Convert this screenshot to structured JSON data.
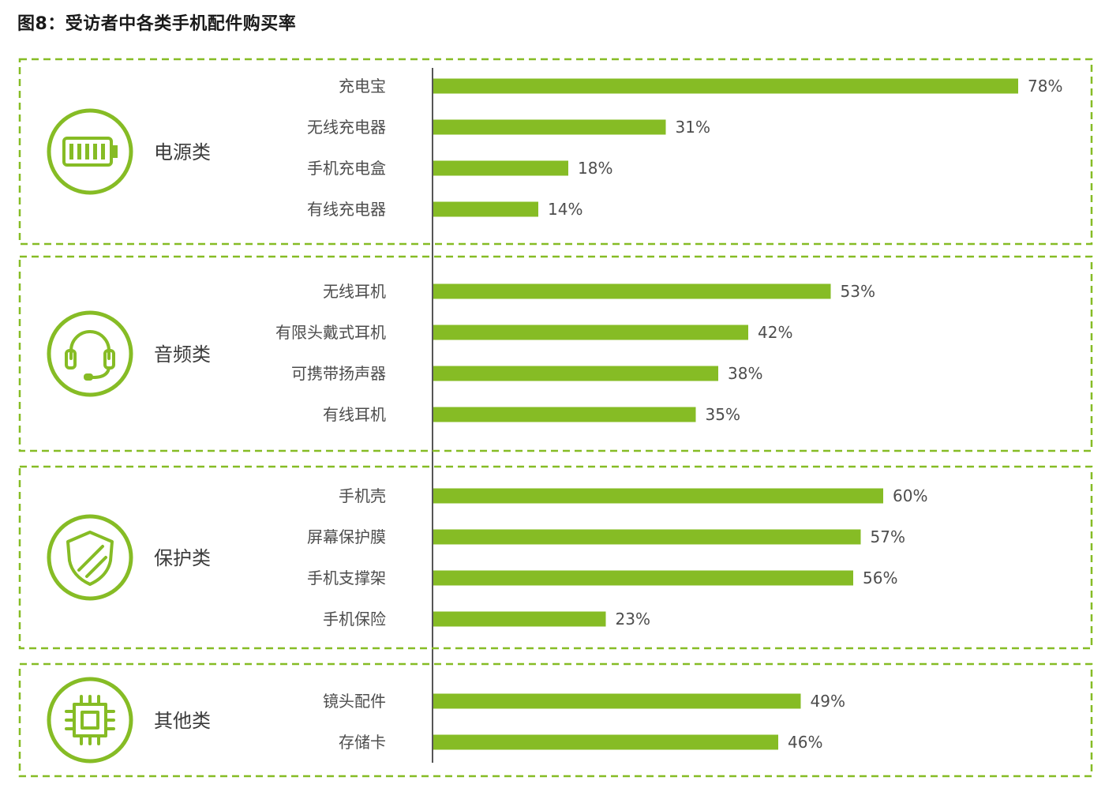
{
  "title": "图8：受访者中各类手机配件购买率",
  "colors": {
    "accent": "#86bc25",
    "text": "#4d4d4d"
  },
  "chart_data": {
    "type": "bar",
    "orientation": "horizontal",
    "title": "图8：受访者中各类手机配件购买率",
    "unit": "%",
    "xlim": [
      0,
      80
    ],
    "grid": false,
    "groups": [
      {
        "name": "电源类",
        "icon": "battery-icon",
        "categories": [
          "充电宝",
          "无线充电器",
          "手机充电盒",
          "有线充电器"
        ],
        "values": [
          78,
          31,
          18,
          14
        ],
        "labels": [
          "78%",
          "31%",
          "18%",
          "14%"
        ]
      },
      {
        "name": "音频类",
        "icon": "headset-icon",
        "categories": [
          "无线耳机",
          "有限头戴式耳机",
          "可携带扬声器",
          "有线耳机"
        ],
        "values": [
          53,
          42,
          38,
          35
        ],
        "labels": [
          "53%",
          "42%",
          "38%",
          "35%"
        ]
      },
      {
        "name": "保护类",
        "icon": "shield-icon",
        "categories": [
          "手机壳",
          "屏幕保护膜",
          "手机支撑架",
          "手机保险"
        ],
        "values": [
          60,
          57,
          56,
          23
        ],
        "labels": [
          "60%",
          "57%",
          "56%",
          "23%"
        ]
      },
      {
        "name": "其他类",
        "icon": "chip-icon",
        "categories": [
          "镜头配件",
          "存储卡"
        ],
        "values": [
          49,
          46
        ],
        "labels": [
          "49%",
          "46%"
        ]
      }
    ]
  }
}
